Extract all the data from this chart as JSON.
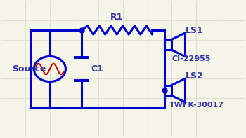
{
  "bg_color": "#f5f5e8",
  "grid_color": "#e0e0d0",
  "line_color": "#0000cc",
  "sine_color": "#cc0000",
  "line_width": 2.2,
  "labels": {
    "source": "Source",
    "r1": "R1",
    "c1": "C1",
    "ls1": "LS1",
    "ls2": "LS2",
    "ci": "CI-22955",
    "twfk": "TWFK-30017"
  },
  "font_size": 9,
  "font_color": "#3333aa"
}
